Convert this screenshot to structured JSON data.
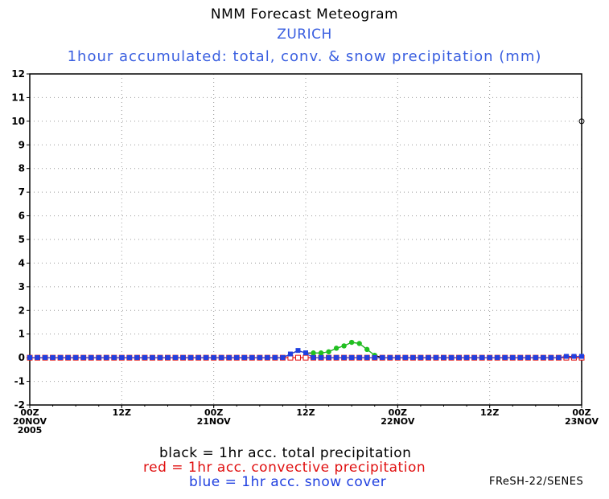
{
  "title": "NMM Forecast Meteogram",
  "location": "ZURICH",
  "subtitle": "1hour accumulated: total, conv. & snow precipitation (mm)",
  "legend": {
    "black": "black = 1hr acc. total precipitation",
    "red": "red = 1hr acc. convective precipitation",
    "blue": "blue = 1hr acc. snow cover"
  },
  "credit": "FReSH-22/SENES",
  "chart_data": {
    "type": "line",
    "grid": true,
    "y_ticks": [
      "-2",
      "-1",
      "0",
      "1",
      "2",
      "3",
      "4",
      "5",
      "6",
      "7",
      "8",
      "9",
      "10",
      "11",
      "12"
    ],
    "ylim": [
      -2,
      12
    ],
    "x_hours_range": [
      0,
      72
    ],
    "x_ticks": [
      {
        "h": 0,
        "lines": [
          "00Z",
          "20NOV",
          "2005"
        ]
      },
      {
        "h": 12,
        "lines": [
          "12Z"
        ]
      },
      {
        "h": 24,
        "lines": [
          "00Z",
          "21NOV"
        ]
      },
      {
        "h": 36,
        "lines": [
          "12Z"
        ]
      },
      {
        "h": 48,
        "lines": [
          "00Z",
          "22NOV"
        ]
      },
      {
        "h": 60,
        "lines": [
          "12Z"
        ]
      },
      {
        "h": 72,
        "lines": [
          "00Z",
          "23NOV"
        ]
      }
    ],
    "series": {
      "total": {
        "color": "#000000",
        "points": [
          [
            0,
            0
          ],
          [
            1,
            0
          ],
          [
            2,
            0
          ],
          [
            3,
            0
          ],
          [
            4,
            0
          ],
          [
            5,
            0
          ],
          [
            6,
            0
          ],
          [
            7,
            0
          ],
          [
            8,
            0
          ],
          [
            9,
            0
          ],
          [
            10,
            0
          ],
          [
            11,
            0
          ],
          [
            12,
            0
          ],
          [
            13,
            0
          ],
          [
            14,
            0
          ],
          [
            15,
            0
          ],
          [
            16,
            0
          ],
          [
            17,
            0
          ],
          [
            18,
            0
          ],
          [
            19,
            0
          ],
          [
            20,
            0
          ],
          [
            21,
            0
          ],
          [
            22,
            0
          ],
          [
            23,
            0
          ],
          [
            24,
            0
          ],
          [
            25,
            0
          ],
          [
            26,
            0
          ],
          [
            27,
            0
          ],
          [
            28,
            0
          ],
          [
            29,
            0
          ],
          [
            30,
            0
          ],
          [
            31,
            0
          ],
          [
            32,
            0
          ],
          [
            33,
            0
          ],
          [
            34,
            0.15
          ],
          [
            35,
            0.3
          ],
          [
            36,
            0.2
          ],
          [
            37,
            0.2
          ],
          [
            38,
            0.2
          ],
          [
            39,
            0.25
          ],
          [
            40,
            0.4
          ],
          [
            41,
            0.5
          ],
          [
            42,
            0.65
          ],
          [
            43,
            0.6
          ],
          [
            44,
            0.35
          ],
          [
            45,
            0.1
          ],
          [
            46,
            0
          ],
          [
            47,
            0
          ],
          [
            48,
            0
          ],
          [
            49,
            0
          ],
          [
            50,
            0
          ],
          [
            51,
            0
          ],
          [
            52,
            0
          ],
          [
            53,
            0
          ],
          [
            54,
            0
          ],
          [
            55,
            0
          ],
          [
            56,
            0
          ],
          [
            57,
            0
          ],
          [
            58,
            0
          ],
          [
            59,
            0
          ],
          [
            60,
            0
          ],
          [
            61,
            0
          ],
          [
            62,
            0
          ],
          [
            63,
            0
          ],
          [
            64,
            0
          ],
          [
            65,
            0
          ],
          [
            66,
            0
          ],
          [
            67,
            0
          ],
          [
            68,
            0
          ],
          [
            69,
            0
          ],
          [
            70,
            0.05
          ],
          [
            71,
            0.05
          ],
          [
            72,
            10
          ]
        ]
      },
      "convective": {
        "color": "#e01010",
        "points": [
          [
            0,
            0
          ],
          [
            1,
            0
          ],
          [
            2,
            0
          ],
          [
            3,
            0
          ],
          [
            4,
            0
          ],
          [
            5,
            0
          ],
          [
            6,
            0
          ],
          [
            7,
            0
          ],
          [
            8,
            0
          ],
          [
            9,
            0
          ],
          [
            10,
            0
          ],
          [
            11,
            0
          ],
          [
            12,
            0
          ],
          [
            13,
            0
          ],
          [
            14,
            0
          ],
          [
            15,
            0
          ],
          [
            16,
            0
          ],
          [
            17,
            0
          ],
          [
            18,
            0
          ],
          [
            19,
            0
          ],
          [
            20,
            0
          ],
          [
            21,
            0
          ],
          [
            22,
            0
          ],
          [
            23,
            0
          ],
          [
            24,
            0
          ],
          [
            25,
            0
          ],
          [
            26,
            0
          ],
          [
            27,
            0
          ],
          [
            28,
            0
          ],
          [
            29,
            0
          ],
          [
            30,
            0
          ],
          [
            31,
            0
          ],
          [
            32,
            0
          ],
          [
            33,
            0
          ],
          [
            34,
            0
          ],
          [
            35,
            0
          ],
          [
            36,
            0
          ],
          [
            37,
            0
          ],
          [
            38,
            0
          ],
          [
            39,
            0
          ],
          [
            40,
            0
          ],
          [
            41,
            0
          ],
          [
            42,
            0
          ],
          [
            43,
            0
          ],
          [
            44,
            0
          ],
          [
            45,
            0
          ],
          [
            46,
            0
          ],
          [
            47,
            0
          ],
          [
            48,
            0
          ],
          [
            49,
            0
          ],
          [
            50,
            0
          ],
          [
            51,
            0
          ],
          [
            52,
            0
          ],
          [
            53,
            0
          ],
          [
            54,
            0
          ],
          [
            55,
            0
          ],
          [
            56,
            0
          ],
          [
            57,
            0
          ],
          [
            58,
            0
          ],
          [
            59,
            0
          ],
          [
            60,
            0
          ],
          [
            61,
            0
          ],
          [
            62,
            0
          ],
          [
            63,
            0
          ],
          [
            64,
            0
          ],
          [
            65,
            0
          ],
          [
            66,
            0
          ],
          [
            67,
            0
          ],
          [
            68,
            0
          ],
          [
            69,
            0
          ],
          [
            70,
            0
          ],
          [
            71,
            0
          ],
          [
            72,
            0
          ]
        ]
      },
      "snow": {
        "color": "#2040e0",
        "points": [
          [
            0,
            0
          ],
          [
            1,
            0
          ],
          [
            2,
            0
          ],
          [
            3,
            0
          ],
          [
            4,
            0
          ],
          [
            5,
            0
          ],
          [
            6,
            0
          ],
          [
            7,
            0
          ],
          [
            8,
            0
          ],
          [
            9,
            0
          ],
          [
            10,
            0
          ],
          [
            11,
            0
          ],
          [
            12,
            0
          ],
          [
            13,
            0
          ],
          [
            14,
            0
          ],
          [
            15,
            0
          ],
          [
            16,
            0
          ],
          [
            17,
            0
          ],
          [
            18,
            0
          ],
          [
            19,
            0
          ],
          [
            20,
            0
          ],
          [
            21,
            0
          ],
          [
            22,
            0
          ],
          [
            23,
            0
          ],
          [
            24,
            0
          ],
          [
            25,
            0
          ],
          [
            26,
            0
          ],
          [
            27,
            0
          ],
          [
            28,
            0
          ],
          [
            29,
            0
          ],
          [
            30,
            0
          ],
          [
            31,
            0
          ],
          [
            32,
            0
          ],
          [
            33,
            0
          ],
          [
            34,
            0.15
          ],
          [
            35,
            0.3
          ],
          [
            36,
            0.2
          ],
          [
            37,
            0
          ],
          [
            38,
            0
          ],
          [
            39,
            0
          ],
          [
            40,
            0
          ],
          [
            41,
            0
          ],
          [
            42,
            0
          ],
          [
            43,
            0
          ],
          [
            44,
            0
          ],
          [
            45,
            0
          ],
          [
            46,
            0
          ],
          [
            47,
            0
          ],
          [
            48,
            0
          ],
          [
            49,
            0
          ],
          [
            50,
            0
          ],
          [
            51,
            0
          ],
          [
            52,
            0
          ],
          [
            53,
            0
          ],
          [
            54,
            0
          ],
          [
            55,
            0
          ],
          [
            56,
            0
          ],
          [
            57,
            0
          ],
          [
            58,
            0
          ],
          [
            59,
            0
          ],
          [
            60,
            0
          ],
          [
            61,
            0
          ],
          [
            62,
            0
          ],
          [
            63,
            0
          ],
          [
            64,
            0
          ],
          [
            65,
            0
          ],
          [
            66,
            0
          ],
          [
            67,
            0
          ],
          [
            68,
            0
          ],
          [
            69,
            0
          ],
          [
            70,
            0.05
          ],
          [
            71,
            0.05
          ],
          [
            72,
            0.05
          ]
        ]
      },
      "rain": {
        "color": "#20c020",
        "points": [
          [
            37,
            0.2
          ],
          [
            38,
            0.2
          ],
          [
            39,
            0.25
          ],
          [
            40,
            0.4
          ],
          [
            41,
            0.5
          ],
          [
            42,
            0.65
          ],
          [
            43,
            0.6
          ],
          [
            44,
            0.35
          ],
          [
            45,
            0.1
          ]
        ]
      }
    }
  }
}
